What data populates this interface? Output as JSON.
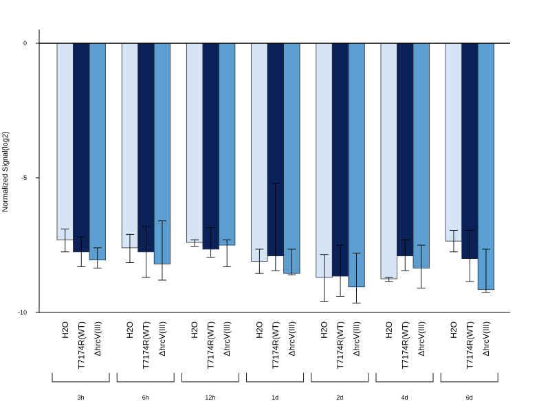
{
  "chart_data": {
    "type": "bar",
    "ylabel": "Normalized Signal(log2)",
    "ylim": [
      -10,
      0.5
    ],
    "yticks": [
      0,
      -5,
      -10
    ],
    "ytick_labels": [
      "0",
      "-5",
      "-10"
    ],
    "groups": [
      "3h",
      "6h",
      "12h",
      "1d",
      "2d",
      "4d",
      "6d"
    ],
    "series": [
      {
        "name": "H2O",
        "color": "#d6e5f5",
        "values": [
          -7.3,
          -7.6,
          -7.4,
          -8.1,
          -8.7,
          -8.75,
          -7.35
        ],
        "err_low": [
          -7.75,
          -8.15,
          -7.55,
          -8.55,
          -9.6,
          -8.85,
          -7.75
        ],
        "err_high": [
          -6.9,
          -7.1,
          -7.3,
          -7.65,
          -7.85,
          -8.7,
          -6.95
        ]
      },
      {
        "name": "T7174R(WT)",
        "color": "#0a2258",
        "values": [
          -7.75,
          -7.75,
          -7.65,
          -7.9,
          -8.65,
          -7.9,
          -8.0
        ],
        "err_low": [
          -8.3,
          -8.7,
          -7.95,
          -8.45,
          -9.4,
          -8.45,
          -8.85
        ],
        "err_high": [
          -7.2,
          -6.8,
          -6.85,
          -5.2,
          -7.5,
          -7.3,
          -6.95
        ]
      },
      {
        "name": "ΔhrcV(III)",
        "color": "#5b9ecf",
        "values": [
          -8.05,
          -8.2,
          -7.5,
          -8.55,
          -9.05,
          -8.35,
          -9.15
        ],
        "err_low": [
          -8.35,
          -8.8,
          -8.3,
          -8.6,
          -9.65,
          -9.1,
          -9.25
        ],
        "err_high": [
          -7.6,
          -6.6,
          -7.3,
          -7.65,
          -7.8,
          -7.5,
          -7.65
        ]
      }
    ]
  }
}
